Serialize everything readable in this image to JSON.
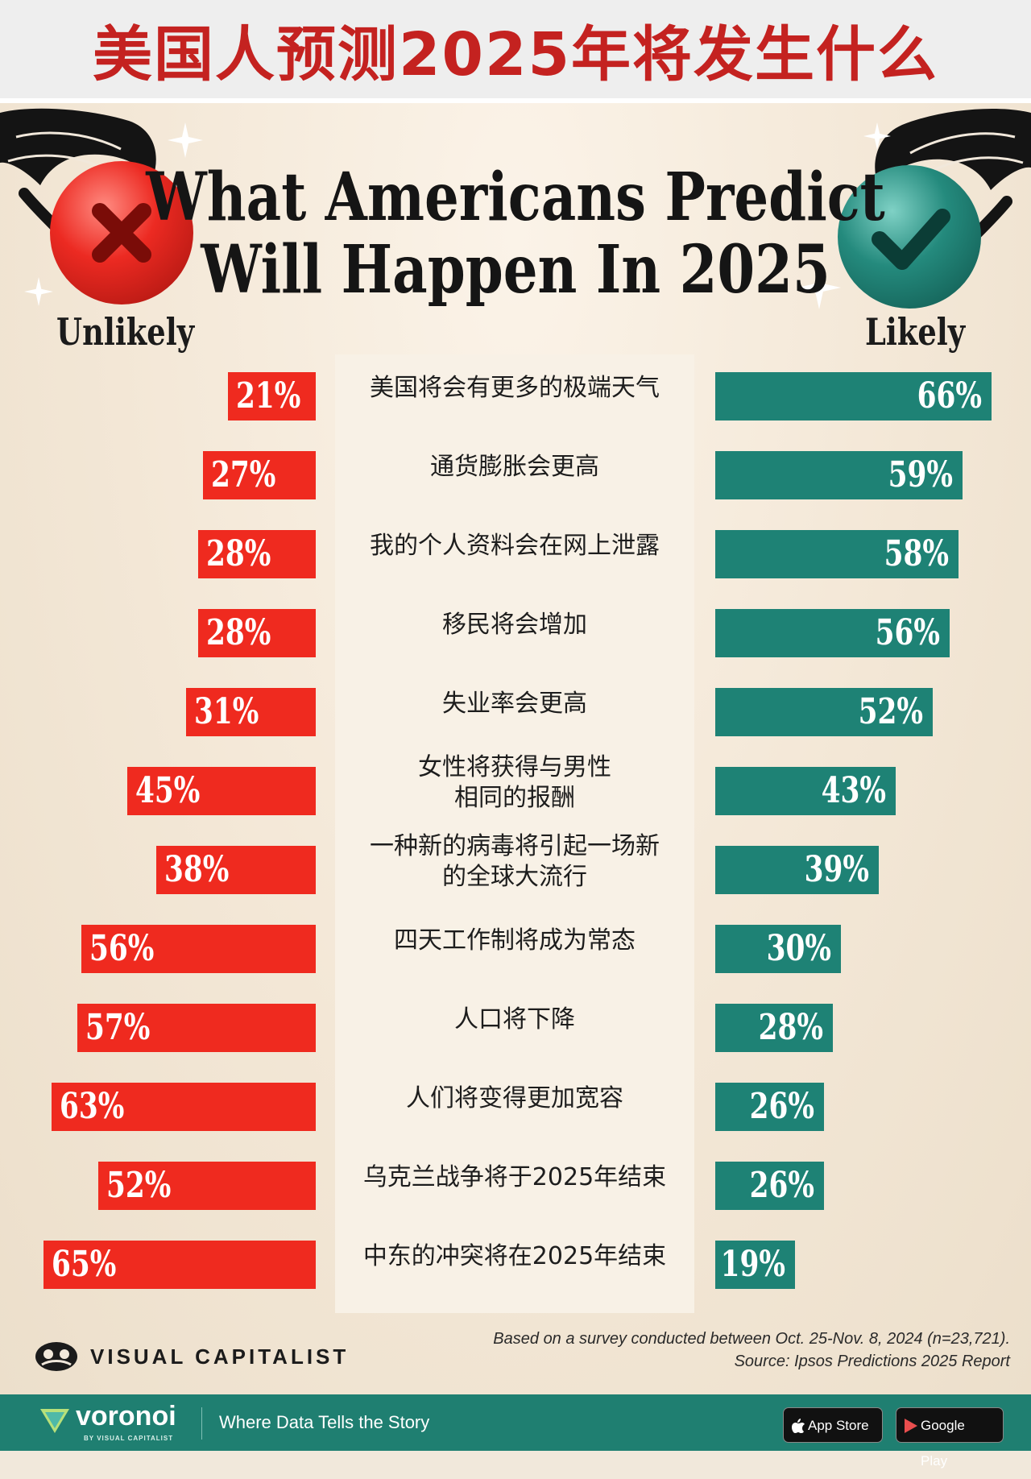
{
  "header": {
    "zh_title": "美国人预测2025年将发生什么"
  },
  "poster": {
    "title_line1": "What Americans Predict",
    "title_line2": "Will Happen In 2025",
    "left_label": "Unlikely",
    "right_label": "Likely",
    "colors": {
      "unlikely": "#ef2a1f",
      "likely": "#1e8275",
      "title_red": "#c42220"
    }
  },
  "chart_data": {
    "type": "bar",
    "orientation": "horizontal-diverging",
    "series": [
      {
        "name": "Unlikely",
        "values": [
          21,
          27,
          28,
          28,
          31,
          45,
          38,
          56,
          57,
          63,
          52,
          65
        ]
      },
      {
        "name": "Likely",
        "values": [
          66,
          59,
          58,
          56,
          52,
          43,
          39,
          30,
          28,
          26,
          26,
          19
        ]
      }
    ],
    "categories": [
      [
        "美国将会有更多的极端天气"
      ],
      [
        "通货膨胀会更高"
      ],
      [
        "我的个人资料会在网上泄露"
      ],
      [
        "移民将会增加"
      ],
      [
        "失业率会更高"
      ],
      [
        "女性将获得与男性",
        "相同的报酬"
      ],
      [
        "一种新的病毒将引起一场新",
        "的全球大流行"
      ],
      [
        "四天工作制将成为常态"
      ],
      [
        "人口将下降"
      ],
      [
        "人们将变得更加宽容"
      ],
      [
        "乌克兰战争将于2025年结束"
      ],
      [
        "中东的冲突将在2025年结束"
      ]
    ],
    "value_suffix": "%"
  },
  "footnote": {
    "line1": "Based on a survey conducted between Oct. 25-Nov. 8, 2024 (n=23,721).",
    "line2": "Source: Ipsos Predictions 2025 Report"
  },
  "logo": {
    "text": "VISUAL CAPITALIST"
  },
  "footer": {
    "brand": "voronoi",
    "brand_sub": "BY VISUAL CAPITALIST",
    "tagline": "Where Data Tells the Story",
    "app_store": "App Store",
    "google_play": "Google Play"
  }
}
